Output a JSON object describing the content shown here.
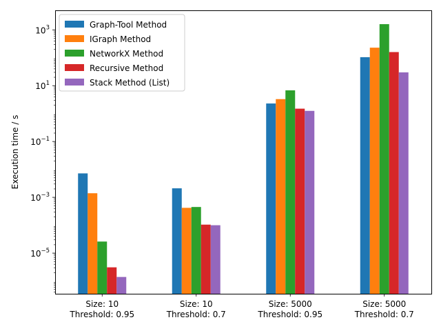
{
  "chart_data": {
    "type": "bar",
    "title": "",
    "xlabel": "",
    "ylabel": "Execution time / s",
    "yscale": "log",
    "ylim": [
      3.5e-07,
      5000
    ],
    "grid": false,
    "legend_position": "top-left",
    "categories": [
      [
        "Size: 10",
        "Threshold: 0.95"
      ],
      [
        "Size: 10",
        "Threshold: 0.7"
      ],
      [
        "Size: 5000",
        "Threshold: 0.95"
      ],
      [
        "Size: 5000",
        "Threshold: 0.7"
      ]
    ],
    "y_ticks": [
      {
        "value": 1e-05,
        "base": "10",
        "exp": "−5"
      },
      {
        "value": 0.001,
        "base": "10",
        "exp": "−3"
      },
      {
        "value": 0.1,
        "base": "10",
        "exp": "−1"
      },
      {
        "value": 10,
        "base": "10",
        "exp": "1"
      },
      {
        "value": 1000,
        "base": "10",
        "exp": "3"
      }
    ],
    "series": [
      {
        "name": "Graph-Tool Method",
        "color": "#1f77b4",
        "values": [
          0.0072,
          0.0021,
          2.3,
          105
        ]
      },
      {
        "name": "IGraph Method",
        "color": "#ff7f0e",
        "values": [
          0.0014,
          0.00042,
          3.3,
          230
        ]
      },
      {
        "name": "NetworkX Method",
        "color": "#2ca02c",
        "values": [
          2.6e-05,
          0.00045,
          6.8,
          1600
        ]
      },
      {
        "name": "Recursive Method",
        "color": "#d62728",
        "values": [
          3.1e-06,
          0.000105,
          1.5,
          160
        ]
      },
      {
        "name": "Stack Method (List)",
        "color": "#9467bd",
        "values": [
          1.4e-06,
          0.0001,
          1.25,
          30
        ]
      }
    ]
  }
}
